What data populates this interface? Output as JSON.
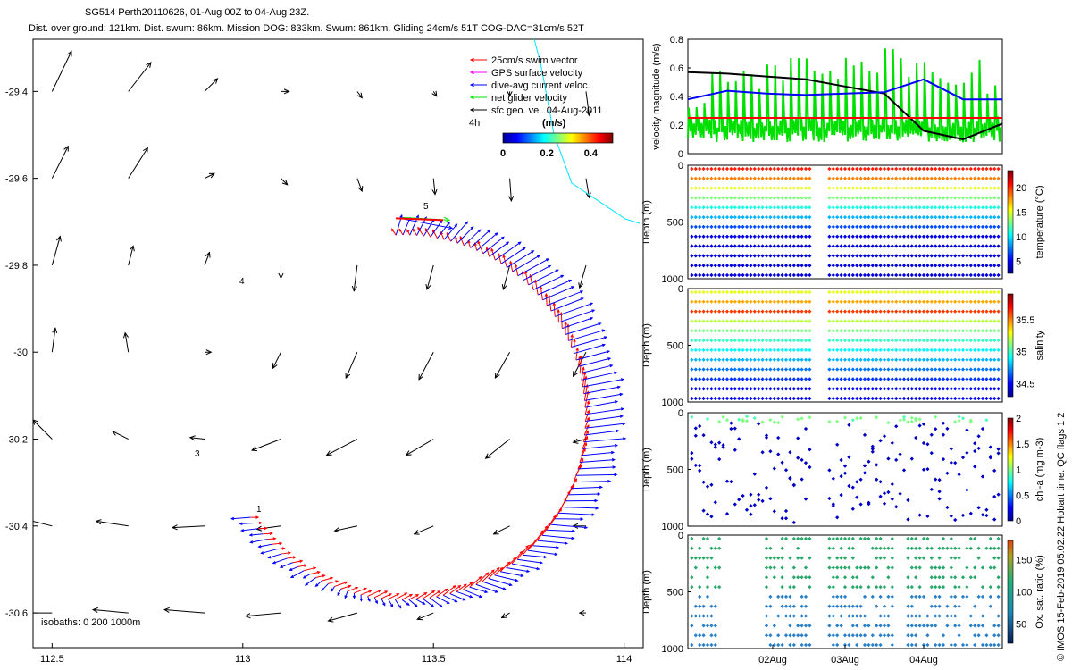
{
  "header": {
    "title_line1": "SG514 Perth20110626,  01-Aug 00Z to 04-Aug 23Z.",
    "title_line2": "Dist. over ground: 121km. Dist. swum: 86km. Mission DOG: 833km. Swum: 861km. Gliding 24cm/s 51T COG-DAC=31cm/s 52T"
  },
  "side_note": "© IMOS 15-Feb-2019 05:02:22 Hobart time. QC flags 1  2",
  "colors": {
    "swim": "#ff0000",
    "gps": "#ff00ff",
    "dac": "#0000ff",
    "net": "#00e000",
    "sfc": "#000000",
    "track_cyan": "#00e5ff"
  },
  "chart_data": [
    {
      "type": "vector-map",
      "xlim": [
        112.45,
        114.05
      ],
      "ylim": [
        -30.68,
        -29.28
      ],
      "xticks": [
        "112.5",
        "113",
        "113.5",
        "114"
      ],
      "yticks": [
        "-29.4",
        "-29.6",
        "-29.8",
        "-30",
        "-30.2",
        "-30.4",
        "-30.6"
      ],
      "legend": {
        "position": "top-right",
        "items": [
          {
            "label": "25cm/s swim vector",
            "color": "#ff0000"
          },
          {
            "label": "GPS surface velocity",
            "color": "#ff00ff"
          },
          {
            "label": "dive-avg current veloc.",
            "color": "#0000ff"
          },
          {
            "label": "net glider velocity",
            "color": "#00e000"
          },
          {
            "label": "sfc geo. vel. 04-Aug-2011",
            "color": "#000000"
          }
        ],
        "interval_label": "4h",
        "unit_label": "(m/s)"
      },
      "colorbar": {
        "ticks": [
          "0",
          "0.2",
          "0.4"
        ],
        "range": [
          0,
          0.5
        ]
      },
      "isobaths_label": "isobaths: 0   200  1000m",
      "track_labels": [
        "1",
        "3",
        "4",
        "5"
      ],
      "track": {
        "center": [
          113.42,
          -30.15
        ],
        "radius_deg": 0.57,
        "start_lon": 113.02,
        "start_lat": -30.38,
        "end_lon": 113.4,
        "end_lat": -29.69
      },
      "sfc_vectors": [
        {
          "lon": 112.5,
          "lat": -29.4,
          "u": 0.12,
          "v": 0.25
        },
        {
          "lon": 112.7,
          "lat": -29.4,
          "u": 0.14,
          "v": 0.18
        },
        {
          "lon": 112.9,
          "lat": -29.4,
          "u": 0.08,
          "v": 0.08
        },
        {
          "lon": 113.1,
          "lat": -29.4,
          "u": 0.05,
          "v": 0.0
        },
        {
          "lon": 113.3,
          "lat": -29.4,
          "u": 0.03,
          "v": -0.04
        },
        {
          "lon": 113.5,
          "lat": -29.4,
          "u": 0.02,
          "v": -0.03
        },
        {
          "lon": 113.7,
          "lat": -29.4,
          "u": 0.0,
          "v": -0.03
        },
        {
          "lon": 113.9,
          "lat": -29.4,
          "u": 0.02,
          "v": -0.15
        },
        {
          "lon": 112.5,
          "lat": -29.6,
          "u": 0.1,
          "v": 0.2
        },
        {
          "lon": 112.7,
          "lat": -29.6,
          "u": 0.12,
          "v": 0.19
        },
        {
          "lon": 112.9,
          "lat": -29.6,
          "u": 0.06,
          "v": 0.03
        },
        {
          "lon": 113.1,
          "lat": -29.6,
          "u": 0.04,
          "v": -0.04
        },
        {
          "lon": 113.3,
          "lat": -29.6,
          "u": 0.03,
          "v": -0.08
        },
        {
          "lon": 113.5,
          "lat": -29.6,
          "u": 0.01,
          "v": -0.1
        },
        {
          "lon": 113.7,
          "lat": -29.6,
          "u": 0.01,
          "v": -0.14
        },
        {
          "lon": 113.9,
          "lat": -29.6,
          "u": 0.02,
          "v": -0.12
        },
        {
          "lon": 112.5,
          "lat": -29.8,
          "u": 0.05,
          "v": 0.18
        },
        {
          "lon": 112.7,
          "lat": -29.8,
          "u": 0.03,
          "v": 0.12
        },
        {
          "lon": 112.9,
          "lat": -29.8,
          "u": 0.03,
          "v": 0.08
        },
        {
          "lon": 113.1,
          "lat": -29.8,
          "u": 0.0,
          "v": -0.08
        },
        {
          "lon": 113.3,
          "lat": -29.8,
          "u": -0.02,
          "v": -0.16
        },
        {
          "lon": 113.5,
          "lat": -29.8,
          "u": -0.04,
          "v": -0.15
        },
        {
          "lon": 113.7,
          "lat": -29.8,
          "u": -0.04,
          "v": -0.15
        },
        {
          "lon": 113.9,
          "lat": -29.8,
          "u": -0.04,
          "v": -0.14
        },
        {
          "lon": 112.5,
          "lat": -30.0,
          "u": 0.02,
          "v": 0.15
        },
        {
          "lon": 112.7,
          "lat": -30.0,
          "u": -0.02,
          "v": 0.12
        },
        {
          "lon": 112.9,
          "lat": -30.0,
          "u": 0.04,
          "v": 0.0
        },
        {
          "lon": 113.1,
          "lat": -30.0,
          "u": -0.05,
          "v": -0.1
        },
        {
          "lon": 113.3,
          "lat": -30.0,
          "u": -0.07,
          "v": -0.16
        },
        {
          "lon": 113.5,
          "lat": -30.0,
          "u": -0.09,
          "v": -0.17
        },
        {
          "lon": 113.7,
          "lat": -30.0,
          "u": -0.09,
          "v": -0.16
        },
        {
          "lon": 113.9,
          "lat": -30.0,
          "u": -0.08,
          "v": -0.15
        },
        {
          "lon": 112.5,
          "lat": -30.2,
          "u": -0.12,
          "v": 0.12
        },
        {
          "lon": 112.7,
          "lat": -30.2,
          "u": -0.1,
          "v": 0.05
        },
        {
          "lon": 112.9,
          "lat": -30.2,
          "u": -0.09,
          "v": 0.01
        },
        {
          "lon": 113.1,
          "lat": -30.2,
          "u": -0.18,
          "v": -0.07
        },
        {
          "lon": 113.3,
          "lat": -30.2,
          "u": -0.19,
          "v": -0.1
        },
        {
          "lon": 113.5,
          "lat": -30.2,
          "u": -0.17,
          "v": -0.1
        },
        {
          "lon": 113.7,
          "lat": -30.2,
          "u": -0.15,
          "v": -0.12
        },
        {
          "lon": 113.9,
          "lat": -30.2,
          "u": -0.08,
          "v": -0.02
        },
        {
          "lon": 112.5,
          "lat": -30.4,
          "u": -0.2,
          "v": 0.05
        },
        {
          "lon": 112.7,
          "lat": -30.4,
          "u": -0.2,
          "v": 0.03
        },
        {
          "lon": 112.9,
          "lat": -30.4,
          "u": -0.2,
          "v": -0.01
        },
        {
          "lon": 113.1,
          "lat": -30.4,
          "u": -0.15,
          "v": -0.02
        },
        {
          "lon": 113.3,
          "lat": -30.4,
          "u": -0.14,
          "v": -0.03
        },
        {
          "lon": 113.5,
          "lat": -30.4,
          "u": -0.12,
          "v": -0.05
        },
        {
          "lon": 113.7,
          "lat": -30.4,
          "u": -0.1,
          "v": -0.05
        },
        {
          "lon": 113.9,
          "lat": -30.4,
          "u": -0.08,
          "v": 0.0
        },
        {
          "lon": 112.5,
          "lat": -30.6,
          "u": -0.2,
          "v": 0.0
        },
        {
          "lon": 112.7,
          "lat": -30.6,
          "u": -0.22,
          "v": 0.02
        },
        {
          "lon": 112.9,
          "lat": -30.6,
          "u": -0.25,
          "v": 0.02
        },
        {
          "lon": 113.1,
          "lat": -30.6,
          "u": -0.22,
          "v": -0.02
        },
        {
          "lon": 113.3,
          "lat": -30.6,
          "u": -0.18,
          "v": -0.05
        },
        {
          "lon": 113.5,
          "lat": -30.6,
          "u": -0.1,
          "v": -0.04
        },
        {
          "lon": 113.7,
          "lat": -30.6,
          "u": -0.05,
          "v": -0.03
        },
        {
          "lon": 113.9,
          "lat": -30.6,
          "u": -0.04,
          "v": 0.0
        }
      ]
    },
    {
      "type": "line",
      "ylabel": "velocity magnitude (m/s)",
      "ylim": [
        0,
        0.8
      ],
      "yticks": [
        "0",
        "0.2",
        "0.4",
        "0.6",
        "0.8"
      ],
      "x_days": [
        0,
        0.5,
        1.0,
        1.5,
        2.0,
        2.5,
        3.0,
        3.5,
        4.0
      ],
      "series": [
        {
          "color": "#000000",
          "values": [
            0.57,
            0.56,
            0.54,
            0.52,
            0.47,
            0.42,
            0.16,
            0.1,
            0.21
          ]
        },
        {
          "color": "#0000ff",
          "values": [
            0.38,
            0.44,
            0.42,
            0.41,
            0.42,
            0.43,
            0.52,
            0.38,
            0.38
          ]
        },
        {
          "color": "#ff0000",
          "values": [
            0.25,
            0.25,
            0.25,
            0.25,
            0.25,
            0.25,
            0.25,
            0.25,
            0.25
          ]
        }
      ],
      "green_daily_max": [
        0.42,
        0.63,
        0.64,
        0.68,
        0.68,
        0.75,
        0.7,
        0.68,
        0.58
      ]
    },
    {
      "type": "scatter",
      "ylabel": "Depth (m)",
      "yticks": [
        "0",
        "500",
        "1000"
      ],
      "colorbar": {
        "label": "temperature (°C)",
        "ticks": [
          "5",
          "10",
          "15",
          "20"
        ],
        "range": [
          2.5,
          23.5
        ]
      }
    },
    {
      "type": "scatter",
      "ylabel": "Depth (m)",
      "yticks": [
        "0",
        "500",
        "1000"
      ],
      "colorbar": {
        "label": "salinity",
        "ticks": [
          "34.5",
          "35",
          "35.5"
        ],
        "range": [
          34.3,
          35.9
        ]
      }
    },
    {
      "type": "scatter",
      "ylabel": "Depth (m)",
      "yticks": [
        "0",
        "500",
        "1000"
      ],
      "colorbar": {
        "label": "chl-a (mg m-3)",
        "ticks": [
          "0",
          "0.5",
          "1",
          "1.5",
          "2"
        ],
        "range": [
          0,
          2
        ]
      }
    },
    {
      "type": "scatter",
      "ylabel": "Depth (m)",
      "yticks": [
        "0",
        "500",
        "1000"
      ],
      "xticks": [
        "02Aug",
        "03Aug",
        "04Aug"
      ],
      "colorbar": {
        "label": "Ox. sat. ratio (%)",
        "ticks": [
          "50",
          "100",
          "150"
        ],
        "range": [
          20,
          180
        ]
      }
    }
  ]
}
